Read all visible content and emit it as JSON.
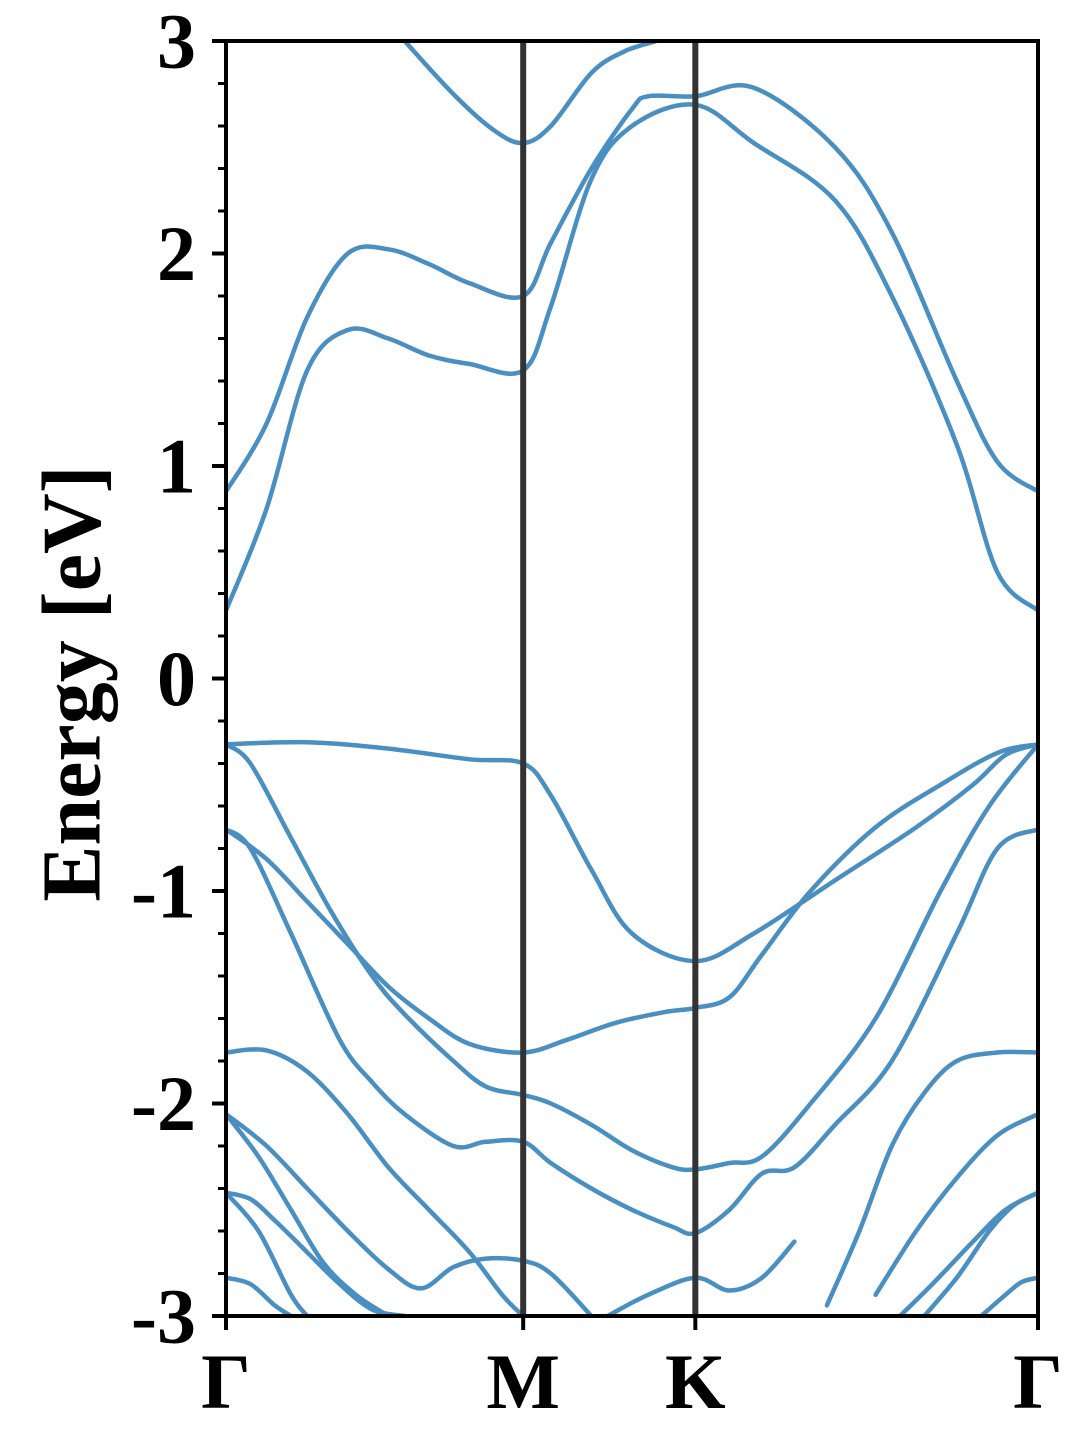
{
  "chart_data": {
    "type": "line",
    "title": "",
    "ylabel": "Energy [eV]",
    "xlabel": "",
    "ylim": [
      -3,
      3
    ],
    "y_ticks": [
      "3",
      "2",
      "1",
      "0",
      "-1",
      "-2",
      "-3"
    ],
    "y_tick_values": [
      3,
      2,
      1,
      0,
      -1,
      -2,
      -3
    ],
    "y_minor_step": 0.2,
    "kpath": [
      {
        "label": "Γ",
        "k": 0.0
      },
      {
        "label": "M",
        "k": 0.366
      },
      {
        "label": "K",
        "k": 0.578
      },
      {
        "label": "Γ",
        "k": 1.0
      }
    ],
    "grid": false,
    "legend": "none",
    "colors": {
      "bands": "#4a8fc2",
      "kpoint_lines": "#333333",
      "axes": "#000000"
    },
    "series": [
      {
        "k": [
          0.0,
          0.05,
          0.1,
          0.15,
          0.2,
          0.25,
          0.3,
          0.366,
          0.4,
          0.45,
          0.5,
          0.52,
          0.578,
          0.65,
          0.75,
          0.82,
          0.9,
          0.95,
          1.0
        ],
        "energy": [
          0.88,
          1.2,
          1.7,
          2.0,
          2.02,
          1.95,
          1.86,
          1.8,
          2.05,
          2.4,
          2.68,
          2.74,
          2.74,
          2.78,
          2.5,
          2.1,
          1.4,
          1.02,
          0.88
        ]
      },
      {
        "k": [
          0.0,
          0.05,
          0.1,
          0.15,
          0.2,
          0.25,
          0.3,
          0.366,
          0.4,
          0.45,
          0.5,
          0.578,
          0.65,
          0.75,
          0.82,
          0.9,
          0.95,
          1.0
        ],
        "energy": [
          0.32,
          0.8,
          1.45,
          1.64,
          1.6,
          1.52,
          1.48,
          1.45,
          1.75,
          2.35,
          2.6,
          2.7,
          2.52,
          2.25,
          1.8,
          1.1,
          0.5,
          0.32
        ]
      },
      {
        "k": [
          0.22,
          0.28,
          0.33,
          0.366,
          0.4,
          0.45,
          0.49,
          0.53
        ],
        "energy": [
          3.0,
          2.75,
          2.58,
          2.52,
          2.6,
          2.85,
          2.95,
          3.0
        ]
      },
      {
        "k": [
          0.0,
          0.1,
          0.2,
          0.3,
          0.366,
          0.4,
          0.45,
          0.5,
          0.578,
          0.65,
          0.75,
          0.85,
          0.92,
          0.96,
          1.0
        ],
        "energy": [
          -0.31,
          -0.3,
          -0.33,
          -0.38,
          -0.4,
          -0.55,
          -0.9,
          -1.2,
          -1.33,
          -1.2,
          -0.95,
          -0.7,
          -0.5,
          -0.36,
          -0.31
        ]
      },
      {
        "k": [
          0.0,
          0.03,
          0.08,
          0.13,
          0.18,
          0.22,
          0.28,
          0.32,
          0.366,
          0.4,
          0.45,
          0.5,
          0.55,
          0.578,
          0.62,
          0.66,
          0.72,
          0.8,
          0.88,
          0.94,
          1.0
        ],
        "energy": [
          -0.31,
          -0.4,
          -0.75,
          -1.1,
          -1.4,
          -1.58,
          -1.8,
          -1.92,
          -1.96,
          -2.0,
          -2.1,
          -2.22,
          -2.3,
          -2.31,
          -2.28,
          -2.25,
          -2.0,
          -1.6,
          -1.0,
          -0.6,
          -0.31
        ]
      },
      {
        "k": [
          0.0,
          0.05,
          0.1,
          0.15,
          0.2,
          0.25,
          0.3,
          0.366,
          0.42,
          0.48,
          0.54,
          0.578,
          0.62,
          0.66,
          0.72,
          0.8,
          0.88,
          0.95,
          1.0
        ],
        "energy": [
          -0.71,
          -0.85,
          -1.05,
          -1.25,
          -1.45,
          -1.6,
          -1.72,
          -1.76,
          -1.7,
          -1.62,
          -1.57,
          -1.55,
          -1.5,
          -1.3,
          -1.0,
          -0.7,
          -0.5,
          -0.35,
          -0.31
        ]
      },
      {
        "k": [
          0.0,
          0.03,
          0.08,
          0.14,
          0.18,
          0.22,
          0.28,
          0.32,
          0.366,
          0.4,
          0.45,
          0.5,
          0.55,
          0.578,
          0.62,
          0.66,
          0.7,
          0.75,
          0.82,
          0.9,
          0.95,
          1.0
        ],
        "energy": [
          -0.71,
          -0.8,
          -1.2,
          -1.7,
          -1.9,
          -2.05,
          -2.2,
          -2.18,
          -2.18,
          -2.28,
          -2.4,
          -2.5,
          -2.58,
          -2.61,
          -2.5,
          -2.33,
          -2.3,
          -2.1,
          -1.8,
          -1.2,
          -0.8,
          -0.71
        ]
      },
      {
        "k": [
          0.0,
          0.05,
          0.1,
          0.15,
          0.2,
          0.25,
          0.3,
          0.34,
          0.366
        ],
        "energy": [
          -1.76,
          -1.75,
          -1.85,
          -2.05,
          -2.3,
          -2.5,
          -2.7,
          -2.9,
          -3.0
        ]
      },
      {
        "k": [
          0.74,
          0.78,
          0.82,
          0.86,
          0.9,
          0.95,
          1.0
        ],
        "energy": [
          -2.95,
          -2.6,
          -2.2,
          -1.95,
          -1.8,
          -1.76,
          -1.76
        ]
      },
      {
        "k": [
          0.0,
          0.05,
          0.1,
          0.15,
          0.2,
          0.24,
          0.28,
          0.32,
          0.366,
          0.4,
          0.45
        ],
        "energy": [
          -2.05,
          -2.2,
          -2.4,
          -2.6,
          -2.78,
          -2.87,
          -2.77,
          -2.73,
          -2.74,
          -2.8,
          -3.0
        ]
      },
      {
        "k": [
          0.8,
          0.85,
          0.9,
          0.95,
          1.0
        ],
        "energy": [
          -2.9,
          -2.6,
          -2.35,
          -2.15,
          -2.05
        ]
      },
      {
        "k": [
          0.0,
          0.03,
          0.06,
          0.1,
          0.14,
          0.18,
          0.22
        ],
        "energy": [
          -2.42,
          -2.45,
          -2.55,
          -2.7,
          -2.85,
          -2.97,
          -3.0
        ]
      },
      {
        "k": [
          0.0,
          0.04,
          0.08,
          0.12,
          0.16,
          0.2
        ],
        "energy": [
          -2.05,
          -2.25,
          -2.5,
          -2.75,
          -2.9,
          -3.0
        ]
      },
      {
        "k": [
          0.0,
          0.04,
          0.08,
          0.1
        ],
        "energy": [
          -2.42,
          -2.6,
          -2.9,
          -3.0
        ]
      },
      {
        "k": [
          0.0,
          0.03,
          0.06,
          0.08
        ],
        "energy": [
          -2.82,
          -2.85,
          -2.95,
          -3.0
        ]
      },
      {
        "k": [
          0.47,
          0.52,
          0.578,
          0.62,
          0.66,
          0.7
        ],
        "energy": [
          -3.0,
          -2.9,
          -2.82,
          -2.88,
          -2.82,
          -2.65
        ]
      },
      {
        "k": [
          0.83,
          0.87,
          0.92,
          0.96,
          1.0
        ],
        "energy": [
          -3.0,
          -2.85,
          -2.65,
          -2.5,
          -2.42
        ]
      },
      {
        "k": [
          0.86,
          0.9,
          0.94,
          0.97,
          1.0
        ],
        "energy": [
          -3.0,
          -2.82,
          -2.6,
          -2.48,
          -2.42
        ]
      },
      {
        "k": [
          0.93,
          0.96,
          0.98,
          1.0
        ],
        "energy": [
          -3.0,
          -2.9,
          -2.84,
          -2.82
        ]
      }
    ]
  }
}
